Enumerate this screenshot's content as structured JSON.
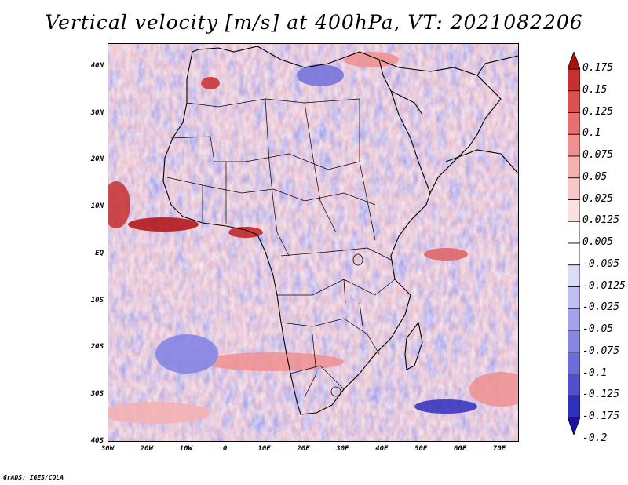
{
  "title": "Vertical velocity [m/s] at 400hPa, VT: 2021082206",
  "credit": "GrADS: IGES/COLA",
  "map": {
    "lat_labels": [
      "40N",
      "30N",
      "20N",
      "10N",
      "EQ",
      "10S",
      "20S",
      "30S",
      "40S"
    ],
    "lon_labels": [
      "30W",
      "20W",
      "10W",
      "0",
      "10E",
      "20E",
      "30E",
      "40E",
      "50E",
      "60E",
      "70E"
    ],
    "lat_range": [
      -40,
      45
    ],
    "lon_range": [
      -30,
      75
    ]
  },
  "colorbar": {
    "levels": [
      "0.175",
      "0.15",
      "0.125",
      "0.1",
      "0.075",
      "0.05",
      "0.025",
      "0.0125",
      "0.005",
      "-0.005",
      "-0.0125",
      "-0.025",
      "-0.05",
      "-0.075",
      "-0.1",
      "-0.125",
      "-0.175",
      "-0.2"
    ],
    "colors": [
      "#b01010",
      "#c83030",
      "#dc5050",
      "#e87070",
      "#f09090",
      "#f5b0b0",
      "#f8c8c8",
      "#fbe0e0",
      "#ffffff",
      "#ffffff",
      "#dcdcf8",
      "#c0c0f0",
      "#a4a4ec",
      "#8888e4",
      "#6c6cdc",
      "#5050d0",
      "#3030c0",
      "#1c10a8"
    ]
  }
}
